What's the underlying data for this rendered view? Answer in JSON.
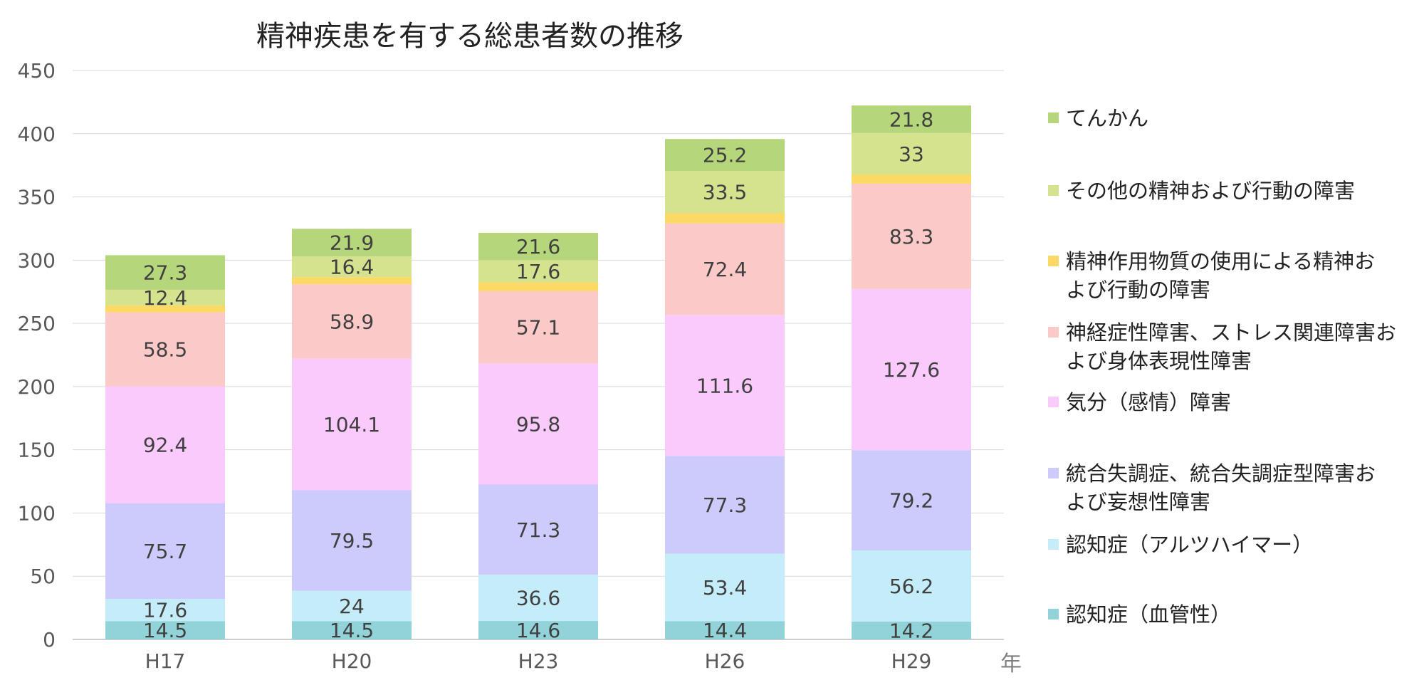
{
  "chart_data": {
    "type": "bar",
    "stacked": true,
    "title": "精神疾患を有する総患者数の推移",
    "xlabel": "年",
    "ylabel": "",
    "ylim": [
      0,
      450
    ],
    "yticks": [
      0,
      50,
      100,
      150,
      200,
      250,
      300,
      350,
      400,
      450
    ],
    "grid": true,
    "legend_position": "right",
    "categories": [
      "H17",
      "H20",
      "H23",
      "H26",
      "H29"
    ],
    "series": [
      {
        "name": "認知症（血管性）",
        "color": "#92d3da",
        "values": [
          14.5,
          14.5,
          14.6,
          14.4,
          14.2
        ],
        "labels": [
          "14.5",
          "14.5",
          "14.6",
          "14.4",
          "14.2"
        ]
      },
      {
        "name": "認知症（アルツハイマー）",
        "color": "#c4ecf9",
        "values": [
          17.6,
          24,
          36.6,
          53.4,
          56.2
        ],
        "labels": [
          "17.6",
          "24",
          "36.6",
          "53.4",
          "56.2"
        ]
      },
      {
        "name": "統合失調症、統合失調症型障害および妄想性障害",
        "color": "#cdcbfb",
        "values": [
          75.7,
          79.5,
          71.3,
          77.3,
          79.2
        ],
        "labels": [
          "75.7",
          "79.5",
          "71.3",
          "77.3",
          "79.2"
        ]
      },
      {
        "name": "気分（感情）障害",
        "color": "#fbcafd",
        "values": [
          92.4,
          104.1,
          95.8,
          111.6,
          127.6
        ],
        "labels": [
          "92.4",
          "104.1",
          "95.8",
          "111.6",
          "127.6"
        ]
      },
      {
        "name": "神経症性障害、ストレス関連障害および身体表現性障害",
        "color": "#fcc9c9",
        "values": [
          58.5,
          58.9,
          57.1,
          72.4,
          83.3
        ],
        "labels": [
          "58.5",
          "58.9",
          "57.1",
          "72.4",
          "83.3"
        ]
      },
      {
        "name": "精神作用物質の使用による精神および行動の障害",
        "color": "#fcd864",
        "values": [
          5.5,
          5.5,
          7,
          8,
          7
        ],
        "labels": [
          "",
          "",
          "",
          "",
          ""
        ]
      },
      {
        "name": "その他の精神および行動の障害",
        "color": "#d6e38e",
        "values": [
          12.4,
          16.4,
          17.6,
          33.5,
          33
        ],
        "labels": [
          "12.4",
          "16.4",
          "17.6",
          "33.5",
          "33"
        ]
      },
      {
        "name": "てんかん",
        "color": "#b5d67a",
        "values": [
          27.3,
          21.9,
          21.6,
          25.2,
          21.8
        ],
        "labels": [
          "27.3",
          "21.9",
          "21.6",
          "25.2",
          "21.8"
        ]
      }
    ]
  },
  "legend": {
    "items": [
      {
        "label": "てんかん",
        "color": "#b5d67a"
      },
      {
        "label": "その他の精神および行動の障害",
        "color": "#d6e38e"
      },
      {
        "label": "精神作用物質の使用による精神お\nよび行動の障害",
        "color": "#fcd864"
      },
      {
        "label": "神経症性障害、ストレス関連障害お\nよび身体表現性障害",
        "color": "#fcc9c9"
      },
      {
        "label": "気分（感情）障害",
        "color": "#fbcafd"
      },
      {
        "label": "統合失調症、統合失調症型障害お\nよび妄想性障害",
        "color": "#cdcbfb"
      },
      {
        "label": "認知症（アルツハイマー）",
        "color": "#c4ecf9"
      },
      {
        "label": "認知症（血管性）",
        "color": "#92d3da"
      }
    ]
  }
}
